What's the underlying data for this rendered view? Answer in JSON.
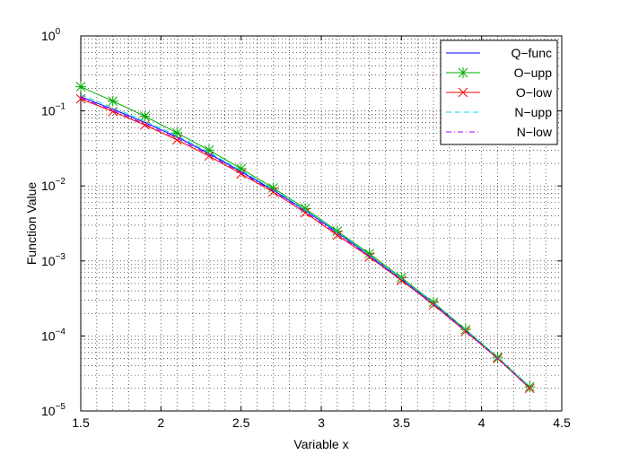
{
  "chart_data": {
    "type": "line",
    "xlabel": "Variable x",
    "ylabel": "Function Value",
    "log_y": true,
    "grid": true,
    "minor_grid": true,
    "legend_loc": "upper right",
    "x": [
      1.5,
      1.7,
      1.9,
      2.1,
      2.3,
      2.5,
      2.7,
      2.9,
      3.1,
      3.3,
      3.5,
      3.7,
      3.9,
      4.1,
      4.3
    ],
    "series": [
      {
        "name": "Q−func",
        "color": "#0000ff",
        "dash": "solid",
        "marker": "none",
        "values": [
          0.155,
          0.105,
          0.07,
          0.045,
          0.027,
          0.0155,
          0.0088,
          0.0047,
          0.0024,
          0.00118,
          0.00057,
          0.00027,
          0.000118,
          5.1e-05,
          2.05e-05
        ]
      },
      {
        "name": "O−upp",
        "color": "#00aa00",
        "dash": "solid",
        "marker": "star",
        "values": [
          0.21,
          0.135,
          0.085,
          0.051,
          0.03,
          0.017,
          0.0094,
          0.005,
          0.0025,
          0.00125,
          0.0006,
          0.00028,
          0.000122,
          5.2e-05,
          2.1e-05
        ]
      },
      {
        "name": "O−low",
        "color": "#ff0000",
        "dash": "solid",
        "marker": "x",
        "values": [
          0.145,
          0.098,
          0.065,
          0.041,
          0.025,
          0.0145,
          0.0083,
          0.0044,
          0.0022,
          0.00113,
          0.00055,
          0.00026,
          0.000115,
          5e-05,
          2e-05
        ]
      },
      {
        "name": "N−upp",
        "color": "#00dddd",
        "dash": "dashed",
        "marker": "none",
        "values": [
          0.165,
          0.11,
          0.073,
          0.047,
          0.028,
          0.016,
          0.009,
          0.0048,
          0.00245,
          0.0012,
          0.00058,
          0.000275,
          0.00012,
          5.15e-05,
          2.07e-05
        ]
      },
      {
        "name": "N−low",
        "color": "#aa00ff",
        "dash": "dashdot",
        "marker": "none",
        "values": [
          0.15,
          0.101,
          0.067,
          0.043,
          0.026,
          0.015,
          0.0085,
          0.0045,
          0.0023,
          0.00115,
          0.00056,
          0.000265,
          0.000116,
          5.05e-05,
          2.02e-05
        ]
      }
    ],
    "xlim": [
      1.5,
      4.5
    ],
    "xticks": [
      1.5,
      2,
      2.5,
      3,
      3.5,
      4,
      4.5
    ],
    "ylim": [
      1e-05,
      1
    ],
    "yticks": [
      {
        "value": 1e-05,
        "label": "10",
        "exponent": "−5"
      },
      {
        "value": 0.0001,
        "label": "10",
        "exponent": "−4"
      },
      {
        "value": 0.001,
        "label": "10",
        "exponent": "−3"
      },
      {
        "value": 0.01,
        "label": "10",
        "exponent": "−2"
      },
      {
        "value": 0.1,
        "label": "10",
        "exponent": "−1"
      },
      {
        "value": 1,
        "label": "10",
        "exponent": "0"
      }
    ]
  }
}
